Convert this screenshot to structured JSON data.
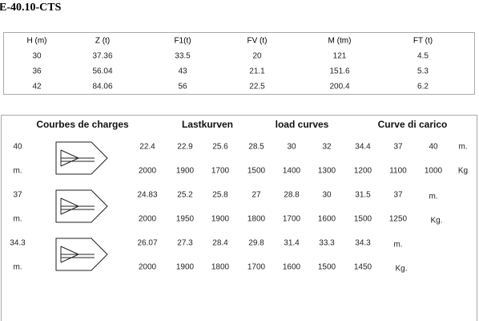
{
  "title": "E-40.10-CTS",
  "table": {
    "headers": [
      "H (m)",
      "Z (t)",
      "F1(t)",
      "FV (t)",
      "M (tm)",
      "FT (t)"
    ],
    "rows": [
      [
        30,
        37.36,
        33.5,
        20,
        121,
        4.5
      ],
      [
        36,
        56.04,
        43,
        21.1,
        151.6,
        5.3
      ],
      [
        42,
        84.06,
        56,
        22.5,
        200.4,
        6.2
      ]
    ]
  },
  "load_curves": {
    "headers": [
      "Courbes de charges",
      "Lastkurven",
      "load curves",
      "Curve di carico"
    ],
    "groups": [
      {
        "jib": 40,
        "jib_unit": "m.",
        "radii": [
          22.4,
          22.9,
          25.6,
          28.5,
          30,
          32,
          34.4,
          37,
          40
        ],
        "radius_unit": "m.",
        "loads": [
          2000,
          1900,
          1700,
          1500,
          1400,
          1300,
          1200,
          1100,
          1000
        ],
        "load_unit": "Kg"
      },
      {
        "jib": 37,
        "jib_unit": "m.",
        "radii": [
          24.83,
          25.2,
          25.8,
          27,
          28.8,
          30,
          31.5,
          37
        ],
        "radius_unit": "m.",
        "loads": [
          2000,
          1950,
          1900,
          1800,
          1700,
          1600,
          1500,
          1250
        ],
        "load_unit": "Kg."
      },
      {
        "jib": 34.3,
        "jib_unit": "m.",
        "radii": [
          26.07,
          27.3,
          28.4,
          29.8,
          31.4,
          33.3,
          34.3
        ],
        "radius_unit": "m.",
        "loads": [
          2000,
          1900,
          1800,
          1700,
          1600,
          1500,
          1450
        ],
        "load_unit": "Kg."
      }
    ]
  }
}
